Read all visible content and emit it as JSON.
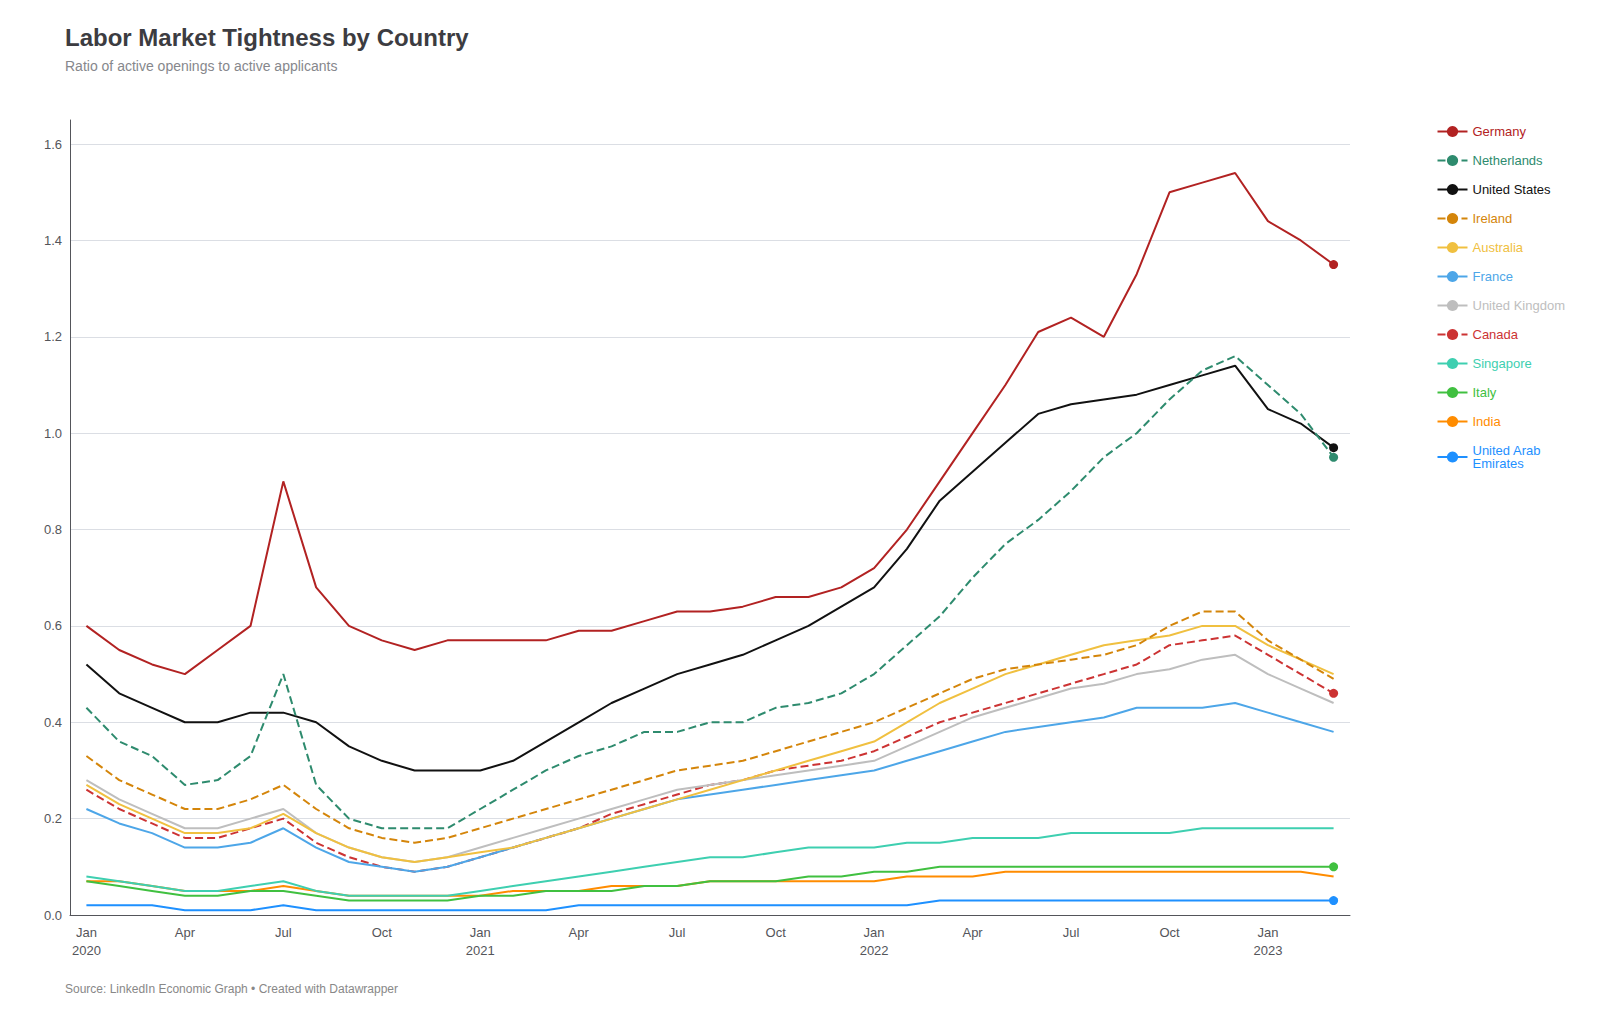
{
  "chart_data": {
    "type": "line",
    "title": "Labor Market Tightness by Country",
    "subtitle": "Ratio of active openings to active applicants",
    "source": "Source: LinkedIn Economic Graph • Created with Datawrapper",
    "categories": [
      "Jan\n2020",
      null,
      null,
      "Apr",
      null,
      null,
      "Jul",
      null,
      null,
      "Oct",
      null,
      null,
      "Jan\n2021",
      null,
      null,
      "Apr",
      null,
      null,
      "Jul",
      null,
      null,
      "Oct",
      null,
      null,
      "Jan\n2022",
      null,
      null,
      "Apr",
      null,
      null,
      "Jul",
      null,
      null,
      "Oct",
      null,
      null,
      "Jan\n2023",
      null,
      null
    ],
    "ylim": [
      0,
      1.65
    ],
    "yticks": [
      {
        "value": 0.0,
        "label": "0.0"
      },
      0.2,
      0.4,
      0.6,
      0.8,
      {
        "value": 1.0,
        "label": "1.0"
      },
      1.2,
      1.4,
      1.6
    ],
    "grid": true,
    "legend": "right",
    "series": [
      {
        "name": "Germany",
        "color": "#b22222",
        "line_style": "solid",
        "marker": "circle",
        "values": [
          0.6,
          0.55,
          0.52,
          0.5,
          0.55,
          0.6,
          0.9,
          0.68,
          0.6,
          0.57,
          0.55,
          0.57,
          0.57,
          0.57,
          0.57,
          0.59,
          0.59,
          0.61,
          0.63,
          0.63,
          0.64,
          0.66,
          0.66,
          0.68,
          0.72,
          0.8,
          0.9,
          1.0,
          1.1,
          1.21,
          1.24,
          1.2,
          1.33,
          1.5,
          1.52,
          1.54,
          1.44,
          1.4,
          1.35
        ]
      },
      {
        "name": "Netherlands",
        "color": "#2e8b6e",
        "line_style": "dashed",
        "marker": "circle",
        "values": [
          0.43,
          0.36,
          0.33,
          0.27,
          0.28,
          0.33,
          0.5,
          0.27,
          0.2,
          0.18,
          0.18,
          0.18,
          0.22,
          0.26,
          0.3,
          0.33,
          0.35,
          0.38,
          0.38,
          0.4,
          0.4,
          0.43,
          0.44,
          0.46,
          0.5,
          0.56,
          0.62,
          0.7,
          0.77,
          0.82,
          0.88,
          0.95,
          1.0,
          1.07,
          1.13,
          1.16,
          1.1,
          1.04,
          0.95
        ]
      },
      {
        "name": "United States",
        "color": "#111111",
        "line_style": "solid",
        "marker": "circle",
        "values": [
          0.52,
          0.46,
          0.43,
          0.4,
          0.4,
          0.42,
          0.42,
          0.4,
          0.35,
          0.32,
          0.3,
          0.3,
          0.3,
          0.32,
          0.36,
          0.4,
          0.44,
          0.47,
          0.5,
          0.52,
          0.54,
          0.57,
          0.6,
          0.64,
          0.68,
          0.76,
          0.86,
          0.92,
          0.98,
          1.04,
          1.06,
          1.07,
          1.08,
          1.1,
          1.12,
          1.14,
          1.05,
          1.02,
          0.97
        ]
      },
      {
        "name": "Ireland",
        "color": "#d4850a",
        "line_style": "dashed",
        "marker": "none",
        "values": [
          0.33,
          0.28,
          0.25,
          0.22,
          0.22,
          0.24,
          0.27,
          0.22,
          0.18,
          0.16,
          0.15,
          0.16,
          0.18,
          0.2,
          0.22,
          0.24,
          0.26,
          0.28,
          0.3,
          0.31,
          0.32,
          0.34,
          0.36,
          0.38,
          0.4,
          0.43,
          0.46,
          0.49,
          0.51,
          0.52,
          0.53,
          0.54,
          0.56,
          0.6,
          0.63,
          0.63,
          0.57,
          0.53,
          0.49
        ]
      },
      {
        "name": "Australia",
        "color": "#f0c040",
        "line_style": "solid",
        "marker": "none",
        "values": [
          0.27,
          0.23,
          0.2,
          0.17,
          0.17,
          0.18,
          0.21,
          0.17,
          0.14,
          0.12,
          0.11,
          0.12,
          0.13,
          0.14,
          0.16,
          0.18,
          0.2,
          0.22,
          0.24,
          0.26,
          0.28,
          0.3,
          0.32,
          0.34,
          0.36,
          0.4,
          0.44,
          0.47,
          0.5,
          0.52,
          0.54,
          0.56,
          0.57,
          0.58,
          0.6,
          0.6,
          0.56,
          0.53,
          0.5
        ]
      },
      {
        "name": "France",
        "color": "#4da6e8",
        "line_style": "solid",
        "marker": "none",
        "values": [
          0.22,
          0.19,
          0.17,
          0.14,
          0.14,
          0.15,
          0.18,
          0.14,
          0.11,
          0.1,
          0.09,
          0.1,
          0.12,
          0.14,
          0.16,
          0.18,
          0.2,
          0.22,
          0.24,
          0.25,
          0.26,
          0.27,
          0.28,
          0.29,
          0.3,
          0.32,
          0.34,
          0.36,
          0.38,
          0.39,
          0.4,
          0.41,
          0.43,
          0.43,
          0.43,
          0.44,
          0.42,
          0.4,
          0.38
        ]
      },
      {
        "name": "United Kingdom",
        "color": "#bebebe",
        "line_style": "solid",
        "marker": "none",
        "values": [
          0.28,
          0.24,
          0.21,
          0.18,
          0.18,
          0.2,
          0.22,
          0.17,
          0.14,
          0.12,
          0.11,
          0.12,
          0.14,
          0.16,
          0.18,
          0.2,
          0.22,
          0.24,
          0.26,
          0.27,
          0.28,
          0.29,
          0.3,
          0.31,
          0.32,
          0.35,
          0.38,
          0.41,
          0.43,
          0.45,
          0.47,
          0.48,
          0.5,
          0.51,
          0.53,
          0.54,
          0.5,
          0.47,
          0.44
        ]
      },
      {
        "name": "Canada",
        "color": "#cc3333",
        "line_style": "dashed",
        "marker": "circle",
        "values": [
          0.26,
          0.22,
          0.19,
          0.16,
          0.16,
          0.18,
          0.2,
          0.15,
          0.12,
          0.1,
          0.09,
          0.1,
          0.12,
          0.14,
          0.16,
          0.18,
          0.21,
          0.23,
          0.25,
          0.27,
          0.28,
          0.3,
          0.31,
          0.32,
          0.34,
          0.37,
          0.4,
          0.42,
          0.44,
          0.46,
          0.48,
          0.5,
          0.52,
          0.56,
          0.57,
          0.58,
          0.54,
          0.5,
          0.46
        ]
      },
      {
        "name": "Singapore",
        "color": "#3ecfb0",
        "line_style": "solid",
        "marker": "none",
        "values": [
          0.08,
          0.07,
          0.06,
          0.05,
          0.05,
          0.06,
          0.07,
          0.05,
          0.04,
          0.04,
          0.04,
          0.04,
          0.05,
          0.06,
          0.07,
          0.08,
          0.09,
          0.1,
          0.11,
          0.12,
          0.12,
          0.13,
          0.14,
          0.14,
          0.14,
          0.15,
          0.15,
          0.16,
          0.16,
          0.16,
          0.17,
          0.17,
          0.17,
          0.17,
          0.18,
          0.18,
          0.18,
          0.18,
          0.18
        ]
      },
      {
        "name": "Italy",
        "color": "#40c040",
        "line_style": "solid",
        "marker": "circle",
        "values": [
          0.07,
          0.06,
          0.05,
          0.04,
          0.04,
          0.05,
          0.05,
          0.04,
          0.03,
          0.03,
          0.03,
          0.03,
          0.04,
          0.04,
          0.05,
          0.05,
          0.05,
          0.06,
          0.06,
          0.07,
          0.07,
          0.07,
          0.08,
          0.08,
          0.09,
          0.09,
          0.1,
          0.1,
          0.1,
          0.1,
          0.1,
          0.1,
          0.1,
          0.1,
          0.1,
          0.1,
          0.1,
          0.1,
          0.1
        ]
      },
      {
        "name": "India",
        "color": "#ff8c00",
        "line_style": "solid",
        "marker": "none",
        "values": [
          0.07,
          0.07,
          0.06,
          0.05,
          0.05,
          0.05,
          0.06,
          0.05,
          0.04,
          0.04,
          0.04,
          0.04,
          0.04,
          0.05,
          0.05,
          0.05,
          0.06,
          0.06,
          0.06,
          0.07,
          0.07,
          0.07,
          0.07,
          0.07,
          0.07,
          0.08,
          0.08,
          0.08,
          0.09,
          0.09,
          0.09,
          0.09,
          0.09,
          0.09,
          0.09,
          0.09,
          0.09,
          0.09,
          0.08
        ]
      },
      {
        "name": "United Arab\nEmirates",
        "color": "#1e90ff",
        "line_style": "solid",
        "marker": "circle",
        "values": [
          0.02,
          0.02,
          0.02,
          0.01,
          0.01,
          0.01,
          0.02,
          0.01,
          0.01,
          0.01,
          0.01,
          0.01,
          0.01,
          0.01,
          0.01,
          0.02,
          0.02,
          0.02,
          0.02,
          0.02,
          0.02,
          0.02,
          0.02,
          0.02,
          0.02,
          0.02,
          0.03,
          0.03,
          0.03,
          0.03,
          0.03,
          0.03,
          0.03,
          0.03,
          0.03,
          0.03,
          0.03,
          0.03,
          0.03
        ]
      }
    ]
  }
}
